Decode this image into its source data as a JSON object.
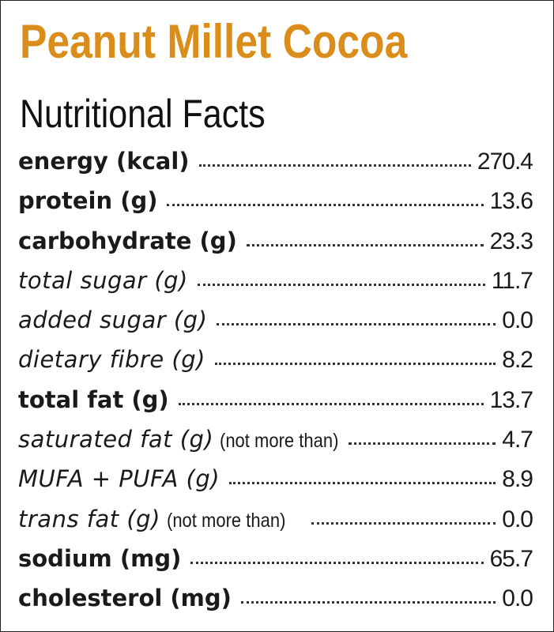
{
  "header": {
    "title": "Peanut Millet Cocoa",
    "subtitle": "Nutritional Facts"
  },
  "rows": [
    {
      "label": "energy (kcal)",
      "value": "270.4"
    },
    {
      "label": "protein (g)",
      "value": "13.6"
    },
    {
      "label": "carbohydrate (g)",
      "value": "23.3"
    },
    {
      "label": "total sugar (g)",
      "value": "11.7"
    },
    {
      "label": "added sugar (g)",
      "value": "0.0"
    },
    {
      "label": "dietary fibre (g)",
      "value": "8.2"
    },
    {
      "label": "total fat (g)",
      "value": "13.7"
    },
    {
      "label": "saturated fat (g)",
      "note": "(not more than)",
      "value": "4.7"
    },
    {
      "label": "MUFA + PUFA (g)",
      "value": "8.9"
    },
    {
      "label": "trans fat (g)",
      "note": "(not more than)",
      "value": "0.0"
    },
    {
      "label": "sodium (mg)",
      "value": "65.7"
    },
    {
      "label": "cholesterol (mg)",
      "value": "0.0"
    }
  ]
}
